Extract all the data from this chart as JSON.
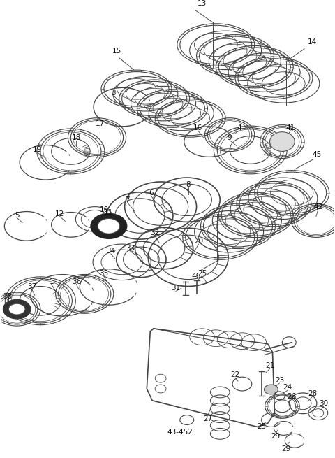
{
  "bg_color": "#ffffff",
  "line_color": "#444444",
  "label_color": "#111111",
  "fig_width": 4.8,
  "fig_height": 6.55,
  "dpi": 100
}
